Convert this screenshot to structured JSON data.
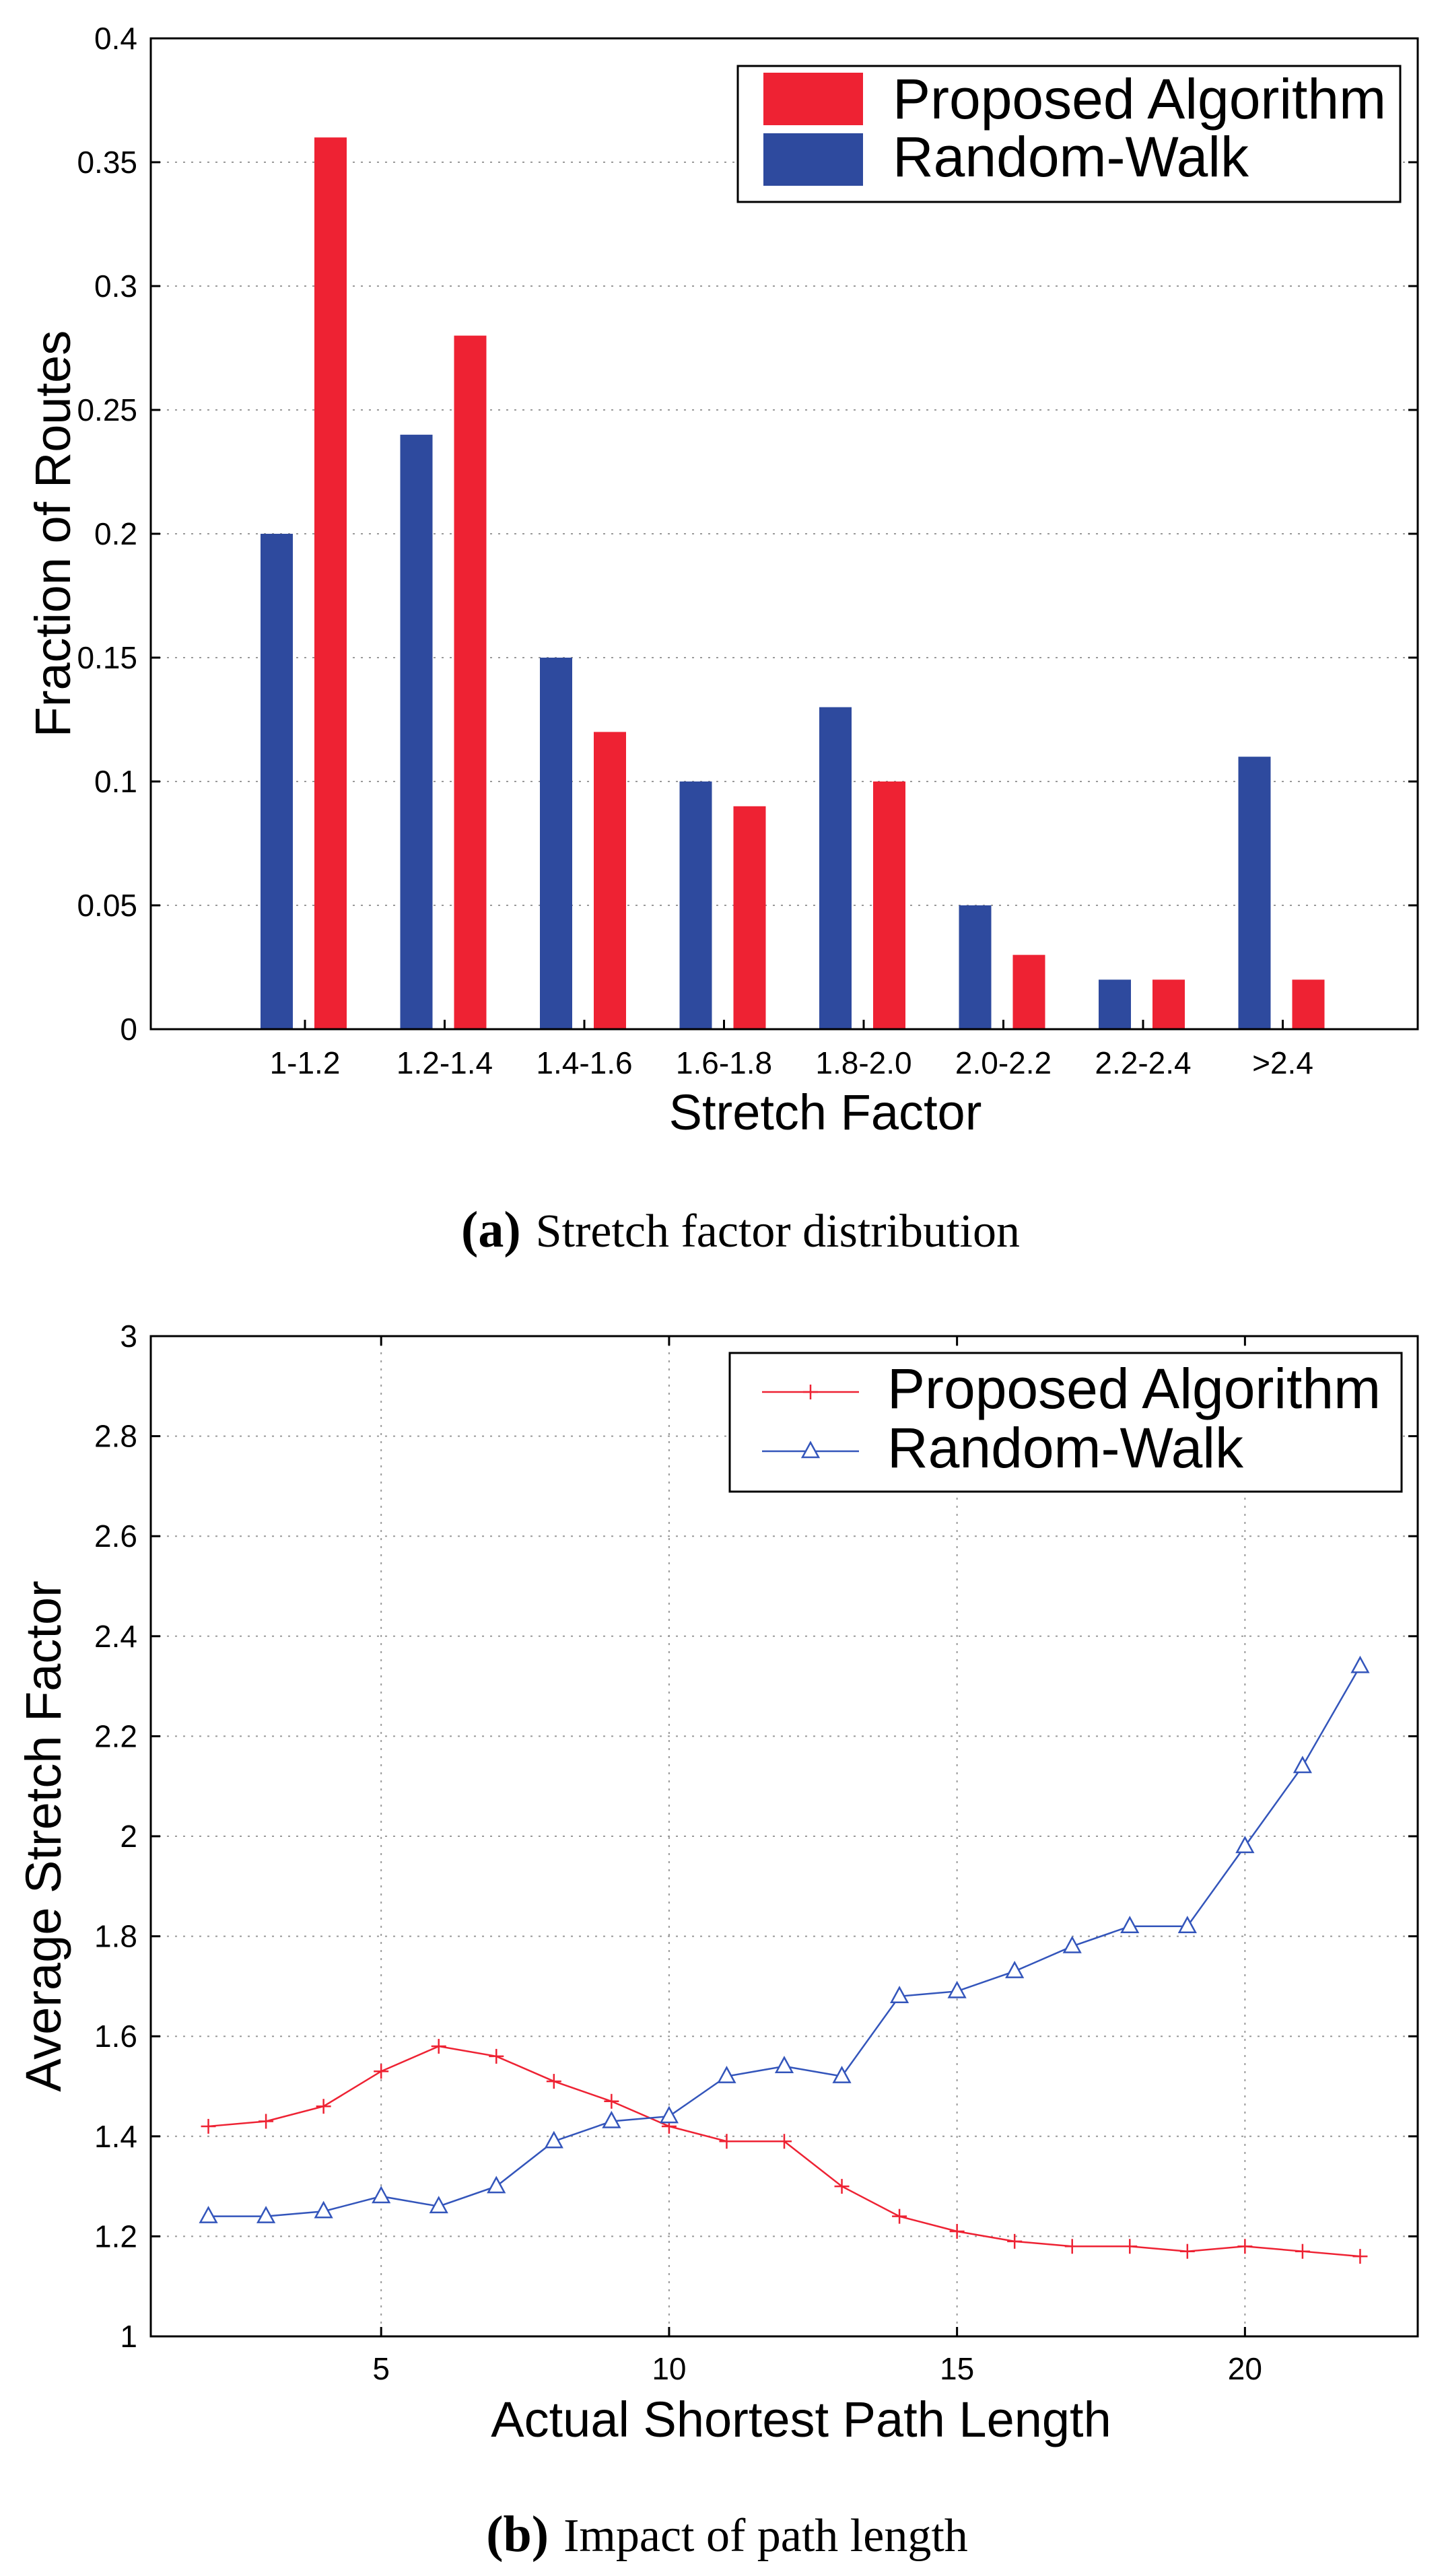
{
  "chart_data": [
    {
      "type": "bar",
      "title": "",
      "xlabel": "Stretch Factor",
      "ylabel": "Fraction of Routes",
      "ylim": [
        0,
        0.4
      ],
      "yticks": [
        0,
        0.05,
        0.1,
        0.15,
        0.2,
        0.25,
        0.3,
        0.35,
        0.4
      ],
      "ytick_labels": [
        "0",
        "0.05",
        "0.1",
        "0.15",
        "0.2",
        "0.25",
        "0.3",
        "0.35",
        "0.4"
      ],
      "grid": true,
      "legend_position": "top-right",
      "categories": [
        "1-1.2",
        "1.2-1.4",
        "1.4-1.6",
        "1.6-1.8",
        "1.8-2.0",
        "2.0-2.2",
        "2.2-2.4",
        ">2.4"
      ],
      "series": [
        {
          "name": "Random-Walk",
          "color": "#2E4A9E",
          "values": [
            0.2,
            0.24,
            0.15,
            0.1,
            0.13,
            0.05,
            0.02,
            0.11
          ]
        },
        {
          "name": "Proposed Algorithm",
          "color": "#EE2233",
          "values": [
            0.36,
            0.28,
            0.12,
            0.09,
            0.1,
            0.03,
            0.02,
            0.02
          ]
        }
      ],
      "legend": [
        "Proposed Algorithm",
        "Random-Walk"
      ],
      "caption_label": "(a)",
      "caption_text": "Stretch factor distribution"
    },
    {
      "type": "line",
      "title": "",
      "xlabel": "Actual Shortest Path Length",
      "ylabel": "Average Stretch Factor",
      "xlim": [
        1,
        23
      ],
      "ylim": [
        1,
        3
      ],
      "xticks": [
        5,
        10,
        15,
        20
      ],
      "xtick_labels": [
        "5",
        "10",
        "15",
        "20"
      ],
      "yticks": [
        1,
        1.2,
        1.4,
        1.6,
        1.8,
        2,
        2.2,
        2.4,
        2.6,
        2.8,
        3
      ],
      "ytick_labels": [
        "1",
        "1.2",
        "1.4",
        "1.6",
        "1.8",
        "2",
        "2.2",
        "2.4",
        "2.6",
        "2.8",
        "3"
      ],
      "grid": true,
      "legend_position": "top-right",
      "x": [
        2,
        3,
        4,
        5,
        6,
        7,
        8,
        9,
        10,
        11,
        12,
        13,
        14,
        15,
        16,
        17,
        18,
        19,
        20,
        21,
        22
      ],
      "series": [
        {
          "name": "Proposed Algorithm",
          "color": "#EE2233",
          "marker": "+",
          "values": [
            1.42,
            1.43,
            1.46,
            1.53,
            1.58,
            1.56,
            1.51,
            1.47,
            1.42,
            1.39,
            1.39,
            1.3,
            1.24,
            1.21,
            1.19,
            1.18,
            1.18,
            1.17,
            1.18,
            1.17,
            1.16
          ]
        },
        {
          "name": "Random-Walk",
          "color": "#3355BB",
          "marker": "triangle",
          "values": [
            1.24,
            1.24,
            1.25,
            1.28,
            1.26,
            1.3,
            1.39,
            1.43,
            1.44,
            1.52,
            1.54,
            1.52,
            1.68,
            1.69,
            1.73,
            1.78,
            1.82,
            1.82,
            1.98,
            2.14,
            2.34
          ]
        }
      ],
      "legend": [
        "Proposed Algorithm",
        "Random-Walk"
      ],
      "caption_label": "(b)",
      "caption_text": "Impact of path length"
    }
  ]
}
